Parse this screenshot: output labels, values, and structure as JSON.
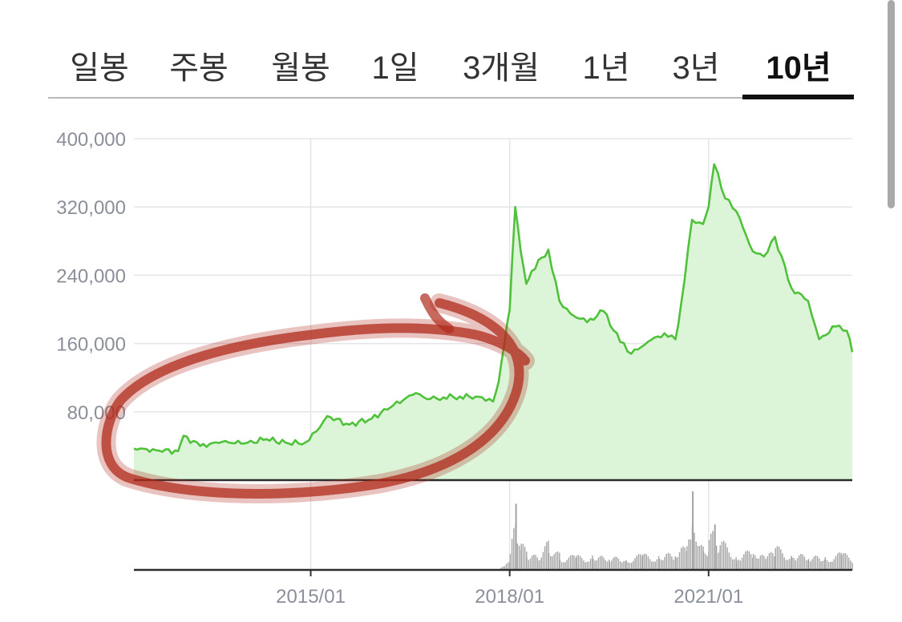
{
  "tabs": [
    {
      "label": "일봉",
      "active": false
    },
    {
      "label": "주봉",
      "active": false
    },
    {
      "label": "월봉",
      "active": false
    },
    {
      "label": "1일",
      "active": false
    },
    {
      "label": "3개월",
      "active": false
    },
    {
      "label": "1년",
      "active": false
    },
    {
      "label": "3년",
      "active": false
    },
    {
      "label": "10년",
      "active": true
    }
  ],
  "colors": {
    "price_line": "#4fc13a",
    "price_fill": "#dcf5d8",
    "volume_bars": "#a3a3a3",
    "grid": "#e3e5e8",
    "axis_text": "#8a8f99",
    "annotation": "#b0291b"
  },
  "chart_data": {
    "type": "area",
    "x_axis_ticks": [
      "2015/01",
      "2018/01",
      "2021/01"
    ],
    "y_axis_ticks": [
      "400,000",
      "320,000",
      "240,000",
      "160,000",
      "80,000"
    ],
    "ylim": [
      0,
      400000
    ],
    "xlim": [
      "2012/05",
      "2023/03"
    ],
    "grid": true,
    "annotation": "hand-drawn red circle around 2012–2017 price range",
    "price_series": {
      "x": [
        "2012/05",
        "2012/09",
        "2013/01",
        "2013/02",
        "2013/05",
        "2013/09",
        "2014/01",
        "2014/05",
        "2014/09",
        "2014/12",
        "2015/02",
        "2015/04",
        "2015/08",
        "2015/12",
        "2016/04",
        "2016/08",
        "2016/10",
        "2017/01",
        "2017/04",
        "2017/08",
        "2017/10",
        "2017/11",
        "2017/12",
        "2018/01",
        "2018/02",
        "2018/03",
        "2018/04",
        "2018/05",
        "2018/08",
        "2018/10",
        "2018/12",
        "2019/03",
        "2019/06",
        "2019/09",
        "2019/11",
        "2020/02",
        "2020/05",
        "2020/07",
        "2020/08",
        "2020/10",
        "2020/12",
        "2021/01",
        "2021/02",
        "2021/04",
        "2021/06",
        "2021/09",
        "2021/11",
        "2022/01",
        "2022/04",
        "2022/07",
        "2022/09",
        "2022/12",
        "2023/02",
        "2023/03"
      ],
      "y": [
        37000,
        35000,
        34000,
        52000,
        40000,
        45000,
        43000,
        48000,
        43000,
        44000,
        57000,
        75000,
        65000,
        72000,
        88000,
        102000,
        95000,
        97000,
        98000,
        97000,
        92000,
        115000,
        158000,
        200000,
        320000,
        268000,
        230000,
        245000,
        270000,
        210000,
        195000,
        185000,
        198000,
        162000,
        148000,
        162000,
        172000,
        165000,
        205000,
        305000,
        300000,
        320000,
        370000,
        330000,
        315000,
        268000,
        262000,
        285000,
        225000,
        210000,
        165000,
        180000,
        175000,
        150000
      ]
    },
    "volume_series": {
      "x": [
        "2012/05",
        "2013/05",
        "2014/05",
        "2015/05",
        "2016/05",
        "2017/05",
        "2017/11",
        "2018/01",
        "2018/02",
        "2018/03",
        "2018/04",
        "2018/06",
        "2018/08",
        "2018/10",
        "2019/01",
        "2019/04",
        "2019/07",
        "2019/10",
        "2020/01",
        "2020/04",
        "2020/07",
        "2020/09",
        "2020/10",
        "2020/12",
        "2021/01",
        "2021/02",
        "2021/03",
        "2021/06",
        "2021/09",
        "2022/01",
        "2022/04",
        "2022/07",
        "2022/10",
        "2023/01",
        "2023/03"
      ],
      "values": [
        0,
        0,
        0,
        0,
        0,
        0,
        0,
        20,
        80,
        35,
        25,
        22,
        40,
        20,
        18,
        22,
        20,
        18,
        20,
        22,
        28,
        38,
        95,
        30,
        40,
        55,
        38,
        25,
        25,
        30,
        25,
        22,
        20,
        22,
        18
      ]
    }
  }
}
